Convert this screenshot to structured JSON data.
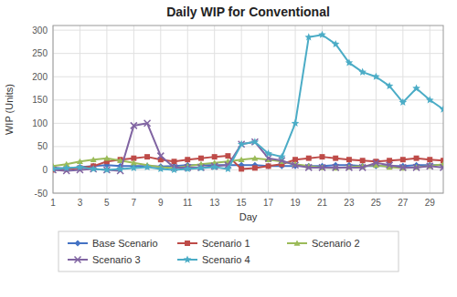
{
  "chart_data": {
    "type": "line",
    "title": "Daily WIP for Conventional",
    "xlabel": "Day",
    "ylabel": "WIP (Units)",
    "xlim": [
      1,
      30
    ],
    "ylim": [
      -50,
      310
    ],
    "xticks": [
      1,
      3,
      5,
      7,
      9,
      11,
      13,
      15,
      17,
      19,
      21,
      23,
      25,
      27,
      29
    ],
    "yticks": [
      -50,
      0,
      50,
      100,
      150,
      200,
      250,
      300
    ],
    "grid": true,
    "legend": "bottom",
    "x": [
      1,
      2,
      3,
      4,
      5,
      6,
      7,
      8,
      9,
      10,
      11,
      12,
      13,
      14,
      15,
      16,
      17,
      18,
      19,
      20,
      21,
      22,
      23,
      24,
      25,
      26,
      27,
      28,
      29,
      30
    ],
    "series": [
      {
        "name": "Base Scenario",
        "color": "#4472C4",
        "marker": "diamond",
        "values": [
          5,
          3,
          6,
          8,
          10,
          8,
          8,
          8,
          7,
          8,
          10,
          10,
          10,
          10,
          10,
          10,
          8,
          8,
          8,
          8,
          8,
          10,
          10,
          8,
          8,
          8,
          8,
          10,
          10,
          10
        ]
      },
      {
        "name": "Scenario 1",
        "color": "#BE4B48",
        "marker": "square",
        "values": [
          0,
          2,
          4,
          8,
          18,
          22,
          25,
          28,
          22,
          18,
          22,
          25,
          28,
          30,
          2,
          4,
          8,
          12,
          22,
          25,
          28,
          25,
          22,
          20,
          18,
          20,
          22,
          25,
          22,
          20
        ]
      },
      {
        "name": "Scenario 2",
        "color": "#9BBB59",
        "marker": "triangle",
        "values": [
          8,
          12,
          18,
          22,
          25,
          20,
          15,
          10,
          6,
          4,
          8,
          12,
          15,
          18,
          22,
          25,
          22,
          18,
          12,
          8,
          5,
          4,
          6,
          8,
          10,
          6,
          4,
          6,
          8,
          12
        ]
      },
      {
        "name": "Scenario 3",
        "color": "#8064A2",
        "marker": "x",
        "values": [
          0,
          -2,
          0,
          2,
          0,
          -2,
          95,
          100,
          30,
          5,
          5,
          5,
          8,
          10,
          55,
          60,
          25,
          20,
          10,
          5,
          5,
          5,
          5,
          5,
          15,
          10,
          5,
          5,
          8,
          5
        ]
      },
      {
        "name": "Scenario 4",
        "color": "#4BACC6",
        "marker": "star",
        "values": [
          2,
          4,
          6,
          2,
          0,
          2,
          4,
          6,
          2,
          0,
          2,
          4,
          6,
          2,
          55,
          60,
          35,
          28,
          100,
          285,
          290,
          270,
          230,
          210,
          200,
          180,
          145,
          175,
          150,
          130
        ]
      }
    ]
  }
}
